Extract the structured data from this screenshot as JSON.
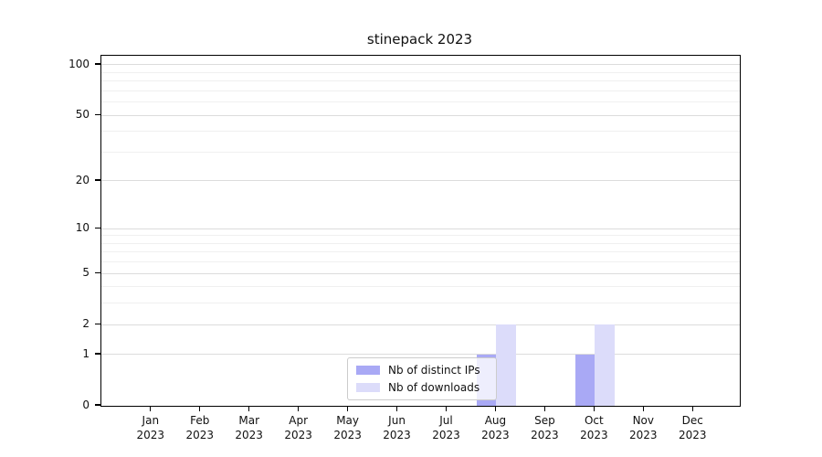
{
  "chart_data": {
    "type": "bar",
    "title": "stinepack 2023",
    "categories": [
      "Jan",
      "Feb",
      "Mar",
      "Apr",
      "May",
      "Jun",
      "Jul",
      "Aug",
      "Sep",
      "Oct",
      "Nov",
      "Dec"
    ],
    "category_year": "2023",
    "series": [
      {
        "name": "Nb of distinct IPs",
        "color": "#a9a9f5",
        "values": [
          0,
          0,
          0,
          0,
          0,
          0,
          0,
          1,
          0,
          1,
          0,
          0
        ]
      },
      {
        "name": "Nb of downloads",
        "color": "#dcdcfa",
        "values": [
          0,
          0,
          0,
          0,
          0,
          0,
          0,
          2,
          0,
          2,
          0,
          0
        ]
      }
    ],
    "xlabel": "",
    "ylabel": "",
    "yscale": "log1p",
    "ylim": [
      0,
      109
    ],
    "yticks": [
      0,
      1,
      2,
      5,
      10,
      20,
      50,
      100
    ],
    "minor_gridlines": [
      3,
      4,
      6,
      7,
      8,
      9,
      30,
      40,
      60,
      70,
      80,
      90
    ],
    "grid": true,
    "legend_position": "lower center"
  }
}
